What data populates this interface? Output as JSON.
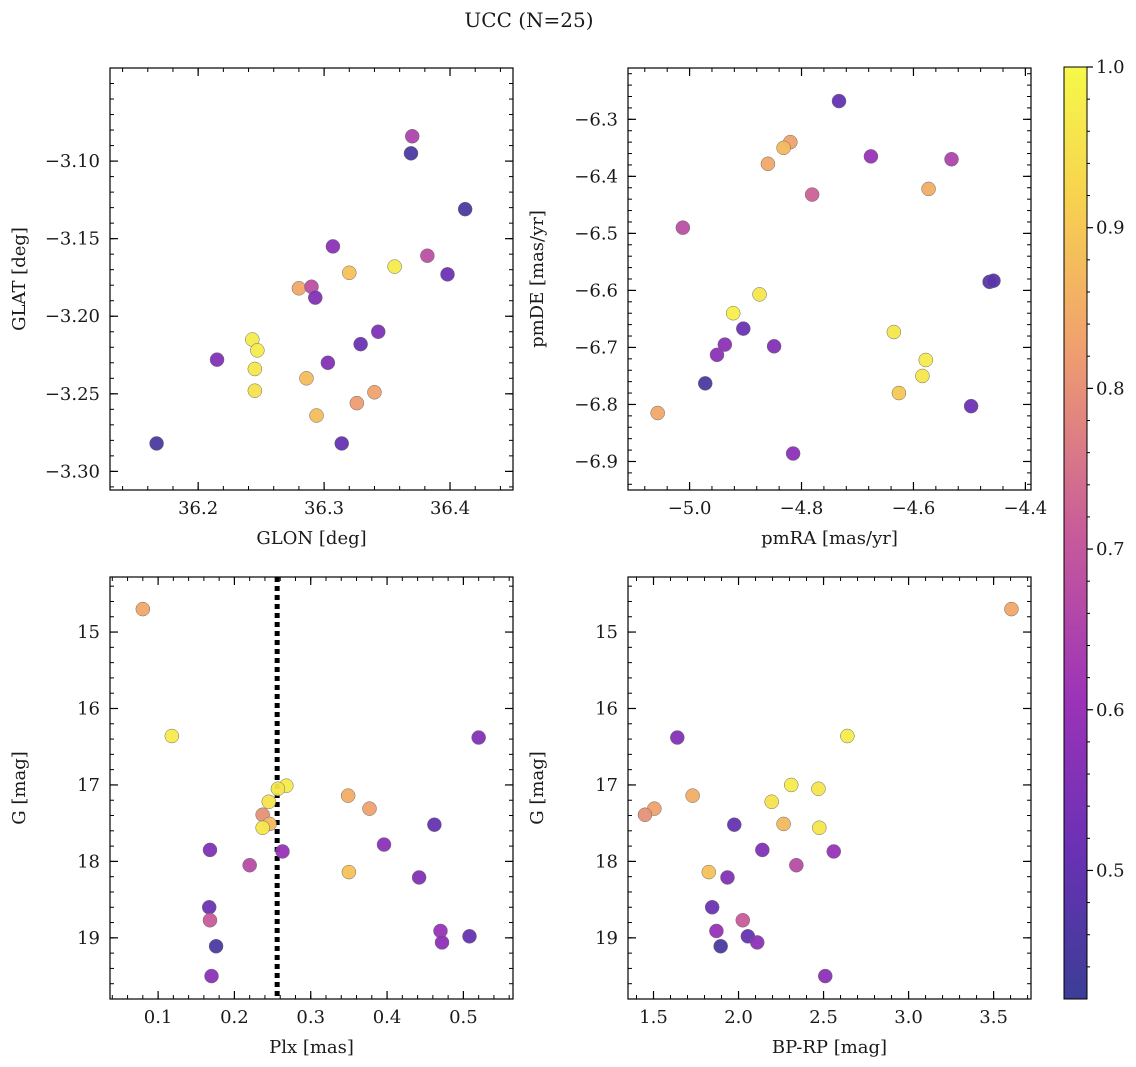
{
  "suptitle": "UCC (N=25)",
  "colorbar": {
    "range": [
      0.42,
      1.0
    ],
    "ticks": [
      0.5,
      0.6,
      0.7,
      0.8,
      0.9,
      1.0
    ],
    "tick_labels": [
      "0.5",
      "0.6",
      "0.7",
      "0.8",
      "0.9",
      "1.0"
    ],
    "colormap": "plasma",
    "colors": [
      "#3b3e96",
      "#6a31b4",
      "#9b33b8",
      "#c85b9a",
      "#f0a06e",
      "#f7d24f",
      "#f6f94a"
    ]
  },
  "chart_data": [
    {
      "type": "scatter",
      "xlabel": "GLON [deg]",
      "ylabel": "GLAT [deg]",
      "xlim": [
        36.13,
        36.45
      ],
      "ylim": [
        -3.312,
        -3.04
      ],
      "y_inverted": false,
      "xticks": [
        36.2,
        36.3,
        36.4
      ],
      "xtick_labels": [
        "36.2",
        "36.3",
        "36.4"
      ],
      "yticks": [
        -3.1,
        -3.15,
        -3.2,
        -3.25,
        -3.3
      ],
      "ytick_labels": [
        "−3.10",
        "−3.15",
        "−3.20",
        "−3.25",
        "−3.30"
      ],
      "points": [
        {
          "x": 36.37,
          "y": -3.084,
          "c": 0.65
        },
        {
          "x": 36.369,
          "y": -3.095,
          "c": 0.45
        },
        {
          "x": 36.412,
          "y": -3.131,
          "c": 0.45
        },
        {
          "x": 36.307,
          "y": -3.155,
          "c": 0.58
        },
        {
          "x": 36.382,
          "y": -3.161,
          "c": 0.68
        },
        {
          "x": 36.356,
          "y": -3.168,
          "c": 0.97
        },
        {
          "x": 36.32,
          "y": -3.172,
          "c": 0.89
        },
        {
          "x": 36.398,
          "y": -3.173,
          "c": 0.52
        },
        {
          "x": 36.28,
          "y": -3.182,
          "c": 0.84
        },
        {
          "x": 36.29,
          "y": -3.181,
          "c": 0.68
        },
        {
          "x": 36.293,
          "y": -3.188,
          "c": 0.56
        },
        {
          "x": 36.343,
          "y": -3.21,
          "c": 0.55
        },
        {
          "x": 36.243,
          "y": -3.215,
          "c": 0.97
        },
        {
          "x": 36.329,
          "y": -3.218,
          "c": 0.52
        },
        {
          "x": 36.247,
          "y": -3.222,
          "c": 0.97
        },
        {
          "x": 36.215,
          "y": -3.228,
          "c": 0.56
        },
        {
          "x": 36.303,
          "y": -3.23,
          "c": 0.56
        },
        {
          "x": 36.245,
          "y": -3.234,
          "c": 0.96
        },
        {
          "x": 36.286,
          "y": -3.24,
          "c": 0.88
        },
        {
          "x": 36.245,
          "y": -3.248,
          "c": 0.95
        },
        {
          "x": 36.34,
          "y": -3.249,
          "c": 0.83
        },
        {
          "x": 36.326,
          "y": -3.256,
          "c": 0.82
        },
        {
          "x": 36.294,
          "y": -3.264,
          "c": 0.88
        },
        {
          "x": 36.314,
          "y": -3.282,
          "c": 0.5
        },
        {
          "x": 36.167,
          "y": -3.282,
          "c": 0.45
        }
      ]
    },
    {
      "type": "scatter",
      "xlabel": "pmRA [mas/yr]",
      "ylabel": "pmDE [mas/yr]",
      "xlim": [
        -5.11,
        -4.39
      ],
      "ylim": [
        -6.95,
        -6.21
      ],
      "y_inverted": false,
      "xticks": [
        -5.0,
        -4.8,
        -4.6,
        -4.4
      ],
      "xtick_labels": [
        "−5.0",
        "−4.8",
        "−4.6",
        "−4.4"
      ],
      "yticks": [
        -6.3,
        -6.4,
        -6.5,
        -6.6,
        -6.7,
        -6.8,
        -6.9
      ],
      "ytick_labels": [
        "−6.3",
        "−6.4",
        "−6.5",
        "−6.6",
        "−6.7",
        "−6.8",
        "−6.9"
      ],
      "points": [
        {
          "x": -4.733,
          "y": -6.268,
          "c": 0.5
        },
        {
          "x": -4.82,
          "y": -6.34,
          "c": 0.83
        },
        {
          "x": -4.832,
          "y": -6.35,
          "c": 0.87
        },
        {
          "x": -4.86,
          "y": -6.378,
          "c": 0.84
        },
        {
          "x": -4.676,
          "y": -6.365,
          "c": 0.6
        },
        {
          "x": -4.532,
          "y": -6.37,
          "c": 0.65
        },
        {
          "x": -4.573,
          "y": -6.422,
          "c": 0.85
        },
        {
          "x": -4.781,
          "y": -6.432,
          "c": 0.72
        },
        {
          "x": -5.012,
          "y": -6.49,
          "c": 0.68
        },
        {
          "x": -4.464,
          "y": -6.585,
          "c": 0.48
        },
        {
          "x": -4.457,
          "y": -6.583,
          "c": 0.48
        },
        {
          "x": -4.875,
          "y": -6.607,
          "c": 0.96
        },
        {
          "x": -4.922,
          "y": -6.64,
          "c": 0.98
        },
        {
          "x": -4.904,
          "y": -6.667,
          "c": 0.52
        },
        {
          "x": -4.635,
          "y": -6.673,
          "c": 0.96
        },
        {
          "x": -4.937,
          "y": -6.695,
          "c": 0.58
        },
        {
          "x": -4.849,
          "y": -6.698,
          "c": 0.56
        },
        {
          "x": -4.951,
          "y": -6.713,
          "c": 0.58
        },
        {
          "x": -4.578,
          "y": -6.722,
          "c": 0.97
        },
        {
          "x": -4.584,
          "y": -6.75,
          "c": 0.96
        },
        {
          "x": -4.972,
          "y": -6.763,
          "c": 0.45
        },
        {
          "x": -4.626,
          "y": -6.78,
          "c": 0.9
        },
        {
          "x": -4.497,
          "y": -6.803,
          "c": 0.52
        },
        {
          "x": -5.057,
          "y": -6.815,
          "c": 0.84
        },
        {
          "x": -4.815,
          "y": -6.886,
          "c": 0.58
        }
      ]
    },
    {
      "type": "scatter",
      "xlabel": "Plx [mas]",
      "ylabel": "G [mag]",
      "xlim": [
        0.037,
        0.565
      ],
      "ylim": [
        19.8,
        14.28
      ],
      "y_inverted": true,
      "xticks": [
        0.1,
        0.2,
        0.3,
        0.4,
        0.5
      ],
      "xtick_labels": [
        "0.1",
        "0.2",
        "0.3",
        "0.4",
        "0.5"
      ],
      "yticks": [
        15,
        16,
        17,
        18,
        19
      ],
      "ytick_labels": [
        "15",
        "16",
        "17",
        "18",
        "19"
      ],
      "vline": {
        "x": 0.256,
        "style": "dotted"
      },
      "points": [
        {
          "x": 0.08,
          "y": 14.7,
          "c": 0.84
        },
        {
          "x": 0.118,
          "y": 16.36,
          "c": 0.97
        },
        {
          "x": 0.52,
          "y": 16.38,
          "c": 0.56
        },
        {
          "x": 0.268,
          "y": 17.01,
          "c": 0.97
        },
        {
          "x": 0.257,
          "y": 17.05,
          "c": 0.96
        },
        {
          "x": 0.349,
          "y": 17.14,
          "c": 0.85
        },
        {
          "x": 0.245,
          "y": 17.22,
          "c": 0.95
        },
        {
          "x": 0.377,
          "y": 17.31,
          "c": 0.83
        },
        {
          "x": 0.237,
          "y": 17.39,
          "c": 0.8
        },
        {
          "x": 0.246,
          "y": 17.51,
          "c": 0.87
        },
        {
          "x": 0.462,
          "y": 17.52,
          "c": 0.5
        },
        {
          "x": 0.237,
          "y": 17.56,
          "c": 0.96
        },
        {
          "x": 0.396,
          "y": 17.78,
          "c": 0.58
        },
        {
          "x": 0.168,
          "y": 17.85,
          "c": 0.56
        },
        {
          "x": 0.263,
          "y": 17.87,
          "c": 0.6
        },
        {
          "x": 0.22,
          "y": 18.05,
          "c": 0.67
        },
        {
          "x": 0.35,
          "y": 18.14,
          "c": 0.89
        },
        {
          "x": 0.442,
          "y": 18.21,
          "c": 0.56
        },
        {
          "x": 0.167,
          "y": 18.6,
          "c": 0.52
        },
        {
          "x": 0.168,
          "y": 18.77,
          "c": 0.71
        },
        {
          "x": 0.47,
          "y": 18.91,
          "c": 0.6
        },
        {
          "x": 0.508,
          "y": 18.98,
          "c": 0.5
        },
        {
          "x": 0.472,
          "y": 19.06,
          "c": 0.58
        },
        {
          "x": 0.176,
          "y": 19.11,
          "c": 0.45
        },
        {
          "x": 0.17,
          "y": 19.5,
          "c": 0.58
        }
      ]
    },
    {
      "type": "scatter",
      "xlabel": "BP-RP [mag]",
      "ylabel": "G [mag]",
      "xlim": [
        1.35,
        3.72
      ],
      "ylim": [
        19.8,
        14.28
      ],
      "y_inverted": true,
      "xticks": [
        1.5,
        2.0,
        2.5,
        3.0,
        3.5
      ],
      "xtick_labels": [
        "1.5",
        "2.0",
        "2.5",
        "3.0",
        "3.5"
      ],
      "yticks": [
        15,
        16,
        17,
        18,
        19
      ],
      "ytick_labels": [
        "15",
        "16",
        "17",
        "18",
        "19"
      ],
      "points": [
        {
          "x": 3.605,
          "y": 14.7,
          "c": 0.84
        },
        {
          "x": 2.64,
          "y": 16.36,
          "c": 0.97
        },
        {
          "x": 1.64,
          "y": 16.38,
          "c": 0.56
        },
        {
          "x": 2.31,
          "y": 17.0,
          "c": 0.97
        },
        {
          "x": 2.47,
          "y": 17.05,
          "c": 0.96
        },
        {
          "x": 1.73,
          "y": 17.14,
          "c": 0.85
        },
        {
          "x": 2.195,
          "y": 17.22,
          "c": 0.95
        },
        {
          "x": 1.505,
          "y": 17.31,
          "c": 0.83
        },
        {
          "x": 1.45,
          "y": 17.39,
          "c": 0.8
        },
        {
          "x": 2.265,
          "y": 17.51,
          "c": 0.87
        },
        {
          "x": 1.975,
          "y": 17.52,
          "c": 0.5
        },
        {
          "x": 2.475,
          "y": 17.56,
          "c": 0.96
        },
        {
          "x": 2.14,
          "y": 17.85,
          "c": 0.56
        },
        {
          "x": 2.56,
          "y": 17.87,
          "c": 0.6
        },
        {
          "x": 2.34,
          "y": 18.05,
          "c": 0.67
        },
        {
          "x": 1.825,
          "y": 18.14,
          "c": 0.89
        },
        {
          "x": 1.935,
          "y": 18.21,
          "c": 0.56
        },
        {
          "x": 1.845,
          "y": 18.6,
          "c": 0.52
        },
        {
          "x": 2.025,
          "y": 18.77,
          "c": 0.71
        },
        {
          "x": 1.87,
          "y": 18.91,
          "c": 0.6
        },
        {
          "x": 2.055,
          "y": 18.98,
          "c": 0.5
        },
        {
          "x": 2.11,
          "y": 19.06,
          "c": 0.58
        },
        {
          "x": 1.895,
          "y": 19.11,
          "c": 0.45
        },
        {
          "x": 2.51,
          "y": 19.5,
          "c": 0.58
        }
      ]
    }
  ]
}
